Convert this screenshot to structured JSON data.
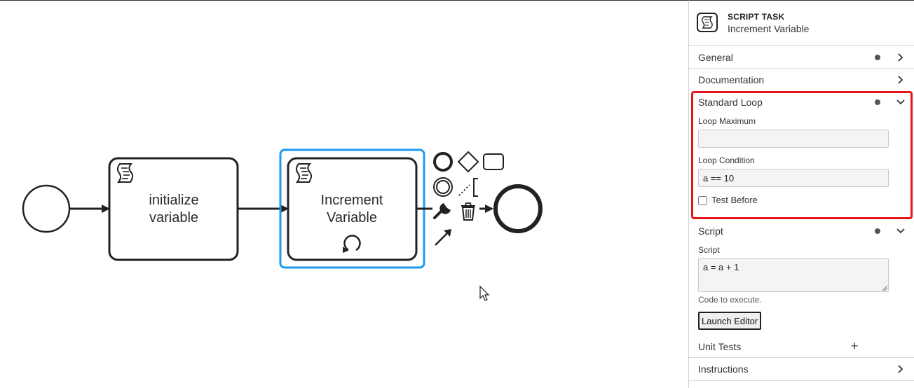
{
  "diagram": {
    "tasks": [
      {
        "id": "task-initialize",
        "label_line1": "initialize",
        "label_line2": "variable",
        "icon": "script-icon"
      },
      {
        "id": "task-increment",
        "label_line1": "Increment",
        "label_line2": "Variable",
        "icon": "script-icon",
        "marker": "loop-icon",
        "selected": true
      }
    ],
    "events": [
      {
        "id": "start-event",
        "type": "start"
      },
      {
        "id": "end-event",
        "type": "end"
      }
    ],
    "context_pad": [
      "end-event-icon",
      "gateway-icon",
      "task-icon",
      "intermediate-event-icon",
      "text-annotation-icon",
      "wrench-icon",
      "delete-icon",
      "connect-icon"
    ],
    "colors": {
      "selection": "#1d9bf0",
      "stroke": "#222222"
    }
  },
  "panel": {
    "header": {
      "type": "SCRIPT TASK",
      "name": "Increment Variable",
      "icon": "script-task-icon"
    },
    "groups": {
      "general": {
        "label": "General",
        "has_dot": true
      },
      "documentation": {
        "label": "Documentation"
      },
      "standard_loop": {
        "label": "Standard Loop",
        "has_dot": true,
        "expanded": true,
        "loop_maximum_label": "Loop Maximum",
        "loop_maximum_value": "",
        "loop_condition_label": "Loop Condition",
        "loop_condition_value": "a == 10",
        "test_before_label": "Test Before",
        "test_before_checked": false
      },
      "script": {
        "label": "Script",
        "has_dot": true,
        "expanded": true,
        "script_label": "Script",
        "script_value": "a = a + 1",
        "hint": "Code to execute.",
        "launch_label": "Launch Editor"
      },
      "unit_tests": {
        "label": "Unit Tests"
      },
      "instructions": {
        "label": "Instructions"
      }
    },
    "colors": {
      "highlight": "#e3161c"
    }
  }
}
